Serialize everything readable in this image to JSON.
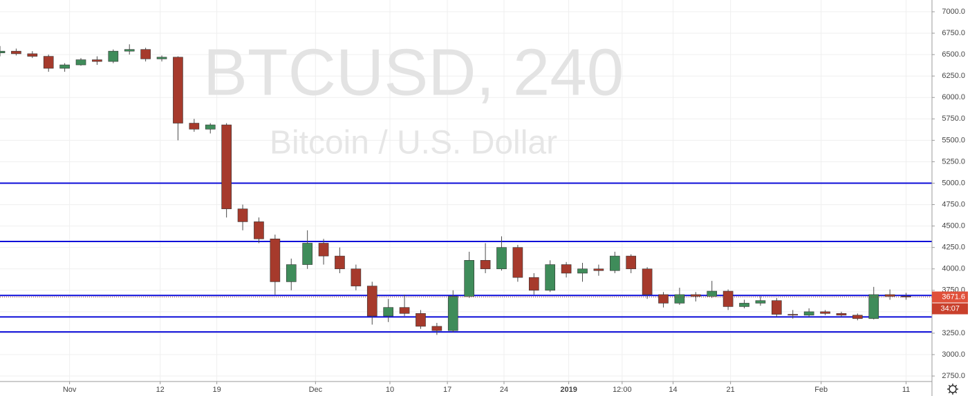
{
  "chart_data": {
    "type": "candlestick",
    "watermark_title": "BTCUSD, 240",
    "watermark_subtitle": "Bitcoin / U.S. Dollar",
    "x": [
      0,
      2,
      4,
      6,
      8,
      10,
      12,
      14,
      16,
      18,
      20,
      22,
      24,
      26,
      28,
      30,
      32,
      34,
      36,
      38,
      40,
      42,
      44,
      46,
      48,
      50,
      52,
      54,
      56,
      58,
      60,
      62,
      64,
      66,
      68,
      70,
      72,
      74,
      76,
      78,
      80,
      82,
      84,
      86,
      88,
      90,
      92,
      94,
      96,
      98,
      100,
      102,
      104,
      106,
      108,
      110,
      112
    ],
    "open": [
      6520,
      6540,
      6510,
      6480,
      6340,
      6380,
      6440,
      6420,
      6540,
      6560,
      6450,
      6470,
      5700,
      5630,
      5680,
      4700,
      4550,
      4350,
      3850,
      4050,
      4300,
      4150,
      4000,
      3800,
      3450,
      3550,
      3480,
      3330,
      3280,
      3680,
      4100,
      4000,
      4250,
      3900,
      3750,
      4050,
      3950,
      4000,
      3980,
      4150,
      4000,
      3700,
      3600,
      3700,
      3680,
      3740,
      3560,
      3600,
      3630,
      3470,
      3460,
      3500,
      3480,
      3460,
      3420,
      3700,
      3680
    ],
    "high": [
      6600,
      6570,
      6540,
      6500,
      6400,
      6460,
      6480,
      6560,
      6620,
      6580,
      6490,
      6480,
      5750,
      5700,
      5700,
      4750,
      4600,
      4400,
      4120,
      4450,
      4350,
      4250,
      4050,
      3850,
      3650,
      3700,
      3520,
      3370,
      3750,
      4200,
      4300,
      4380,
      4280,
      3950,
      4100,
      4080,
      4070,
      4050,
      4200,
      4170,
      4020,
      3730,
      3780,
      3730,
      3860,
      3760,
      3640,
      3680,
      3660,
      3520,
      3540,
      3520,
      3500,
      3480,
      3790,
      3760,
      3720
    ],
    "low": [
      6480,
      6490,
      6460,
      6300,
      6300,
      6370,
      6380,
      6400,
      6500,
      6420,
      6420,
      5500,
      5600,
      5580,
      4600,
      4450,
      4300,
      3700,
      3750,
      4000,
      4050,
      3950,
      3750,
      3350,
      3380,
      3450,
      3300,
      3230,
      3260,
      3660,
      3950,
      3980,
      3850,
      3700,
      3730,
      3900,
      3850,
      3920,
      3950,
      3950,
      3650,
      3550,
      3580,
      3620,
      3660,
      3520,
      3540,
      3570,
      3440,
      3420,
      3440,
      3460,
      3440,
      3400,
      3410,
      3640,
      3640
    ],
    "close": [
      6540,
      6510,
      6480,
      6340,
      6380,
      6440,
      6420,
      6540,
      6560,
      6450,
      6470,
      5700,
      5630,
      5680,
      4700,
      4550,
      4350,
      3850,
      4050,
      4300,
      4150,
      4000,
      3800,
      3450,
      3550,
      3480,
      3330,
      3280,
      3680,
      4100,
      4000,
      4250,
      3900,
      3750,
      4050,
      3950,
      4000,
      3980,
      4150,
      4000,
      3700,
      3600,
      3700,
      3680,
      3740,
      3560,
      3600,
      3630,
      3470,
      3460,
      3500,
      3480,
      3460,
      3420,
      3700,
      3680,
      3671.6
    ],
    "up_color": "#3f8c5a",
    "down_color": "#a63a2c",
    "levels": [
      5000,
      4320,
      3690,
      3440,
      3265
    ],
    "level_color": "#0a0ad8",
    "countdown": "34:07",
    "xlim": [
      0,
      115.2
    ],
    "ylim": [
      2686,
      7137
    ],
    "xticks": [
      {
        "value": 8.6,
        "label": "Nov"
      },
      {
        "value": 19.8,
        "label": "12"
      },
      {
        "value": 26.8,
        "label": "19"
      },
      {
        "value": 39.0,
        "label": "Dec"
      },
      {
        "value": 48.2,
        "label": "10"
      },
      {
        "value": 55.3,
        "label": "17"
      },
      {
        "value": 62.3,
        "label": "24"
      },
      {
        "value": 70.3,
        "label": "2019"
      },
      {
        "value": 76.9,
        "label": "12:00"
      },
      {
        "value": 83.2,
        "label": "14"
      },
      {
        "value": 90.3,
        "label": "21"
      },
      {
        "value": 101.5,
        "label": "Feb"
      },
      {
        "value": 112.0,
        "label": "11"
      }
    ],
    "yticks": [
      {
        "value": 2750,
        "label": "2750.0"
      },
      {
        "value": 3000,
        "label": "3000.0"
      },
      {
        "value": 3250,
        "label": "3250.0"
      },
      {
        "value": 3500,
        "label": "3500.0"
      },
      {
        "value": 3750,
        "label": "3750.0"
      },
      {
        "value": 4000,
        "label": "4000.0"
      },
      {
        "value": 4250,
        "label": "4250.0"
      },
      {
        "value": 4500,
        "label": "4500.0"
      },
      {
        "value": 4750,
        "label": "4750.0"
      },
      {
        "value": 5000,
        "label": "5000.0"
      },
      {
        "value": 5250,
        "label": "5250.0"
      },
      {
        "value": 5500,
        "label": "5500.0"
      },
      {
        "value": 5750,
        "label": "5750.0"
      },
      {
        "value": 6000,
        "label": "6000.0"
      },
      {
        "value": 6250,
        "label": "6250.0"
      },
      {
        "value": 6500,
        "label": "6500.0"
      },
      {
        "value": 6750,
        "label": "6750.0"
      },
      {
        "value": 7000,
        "label": "7000.0"
      }
    ],
    "grid": true
  }
}
